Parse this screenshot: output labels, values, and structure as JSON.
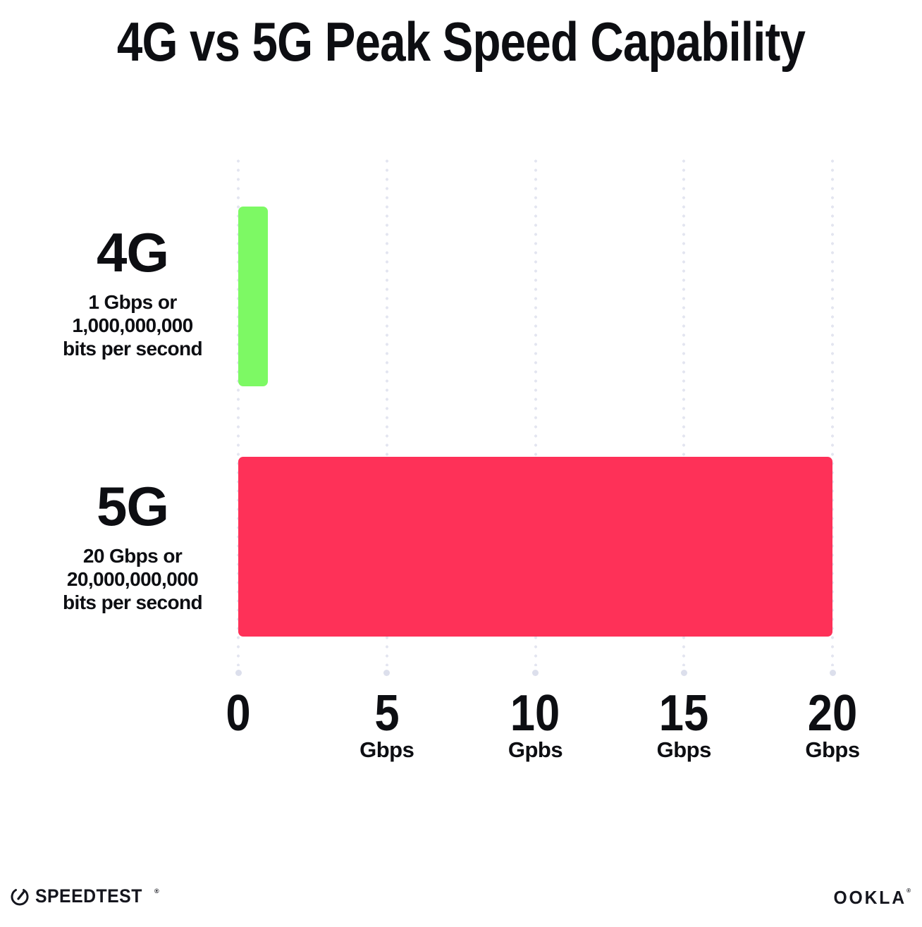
{
  "chart_data": {
    "type": "bar",
    "orientation": "horizontal",
    "title": "4G vs 5G Peak Speed Capability",
    "categories": [
      "4G",
      "5G"
    ],
    "values": [
      1,
      20
    ],
    "value_unit": "Gbps",
    "xlim": [
      0,
      20
    ],
    "grid": "vertical-dotted",
    "legend": "none",
    "bar_colors": {
      "4G": "#7DF964",
      "5G": "#FE3158"
    },
    "category_sublabels": {
      "4G": [
        "1 Gbps or",
        "1,000,000,000",
        "bits per second"
      ],
      "5G": [
        "20 Gbps or",
        "20,000,000,000",
        "bits per second"
      ]
    },
    "x_ticks": [
      {
        "value": 0,
        "label": "0",
        "unit": ""
      },
      {
        "value": 5,
        "label": "5",
        "unit": "Gbps"
      },
      {
        "value": 10,
        "label": "10",
        "unit": "Gpbs"
      },
      {
        "value": 15,
        "label": "15",
        "unit": "Gbps"
      },
      {
        "value": 20,
        "label": "20",
        "unit": "Gbps"
      }
    ]
  },
  "footer": {
    "speedtest_label": "SPEEDTEST",
    "ookla_label": "OOKLA",
    "trademark": "®"
  },
  "colors": {
    "background": "#FFFFFF",
    "text": "#0D0E12",
    "grid_dot": "#E3E5F0",
    "grid_end_dot": "#DCDFEC",
    "bar_4g": "#7DF964",
    "bar_5g": "#FE3158",
    "logo": "#15161E"
  }
}
